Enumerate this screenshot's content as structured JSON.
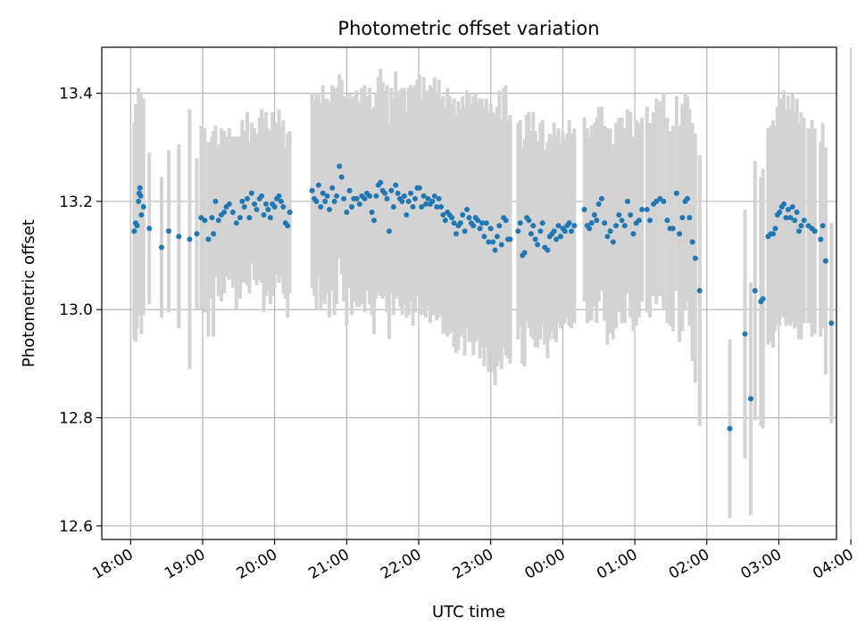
{
  "chart_data": {
    "type": "scatter",
    "title": "Photometric offset variation",
    "xlabel": "UTC time",
    "ylabel": "Photometric offset",
    "ylim": [
      12.575,
      13.485
    ],
    "xlim": [
      -0.4,
      9.8
    ],
    "grid": true,
    "x_unit": "hours after 18:00 UTC",
    "x_tick_values": [
      0,
      1,
      2,
      3,
      4,
      5,
      6,
      7,
      8,
      9,
      10
    ],
    "x_tick_labels": [
      "18:00",
      "19:00",
      "20:00",
      "21:00",
      "22:00",
      "23:00",
      "00:00",
      "01:00",
      "02:00",
      "03:00",
      "04:00"
    ],
    "y_tick_values": [
      12.6,
      12.8,
      13.0,
      13.2,
      13.4
    ],
    "y_tick_labels": [
      "12.6",
      "12.8",
      "13.0",
      "13.2",
      "13.4"
    ],
    "colors": {
      "point": "#1f77b4",
      "errorbar": "#d3d3d3",
      "grid": "#b0b0b0"
    },
    "series": [
      {
        "points": [
          [
            0.05,
            13.145,
            0.2
          ],
          [
            0.07,
            13.16,
            0.22
          ],
          [
            0.09,
            13.155,
            0.19
          ],
          [
            0.11,
            13.2,
            0.21
          ],
          [
            0.12,
            13.215,
            0.18
          ],
          [
            0.13,
            13.225,
            0.17
          ],
          [
            0.14,
            13.21,
            0.19
          ],
          [
            0.15,
            13.175,
            0.22
          ],
          [
            0.18,
            13.19,
            0.2
          ],
          [
            0.26,
            13.15,
            0.14
          ],
          [
            0.43,
            13.115,
            0.13
          ],
          [
            0.53,
            13.145,
            0.15
          ],
          [
            0.67,
            13.135,
            0.17
          ],
          [
            0.82,
            13.13,
            0.24
          ],
          [
            0.92,
            13.14,
            0.14
          ],
          [
            0.98,
            13.17,
            0.17
          ],
          [
            1.03,
            13.165,
            0.17
          ],
          [
            1.08,
            13.13,
            0.18
          ],
          [
            1.13,
            13.17,
            0.15
          ],
          [
            1.15,
            13.14,
            0.19
          ],
          [
            1.18,
            13.2,
            0.14
          ],
          [
            1.22,
            13.165,
            0.14
          ],
          [
            1.26,
            13.175,
            0.16
          ],
          [
            1.3,
            13.18,
            0.15
          ],
          [
            1.33,
            13.19,
            0.13
          ],
          [
            1.37,
            13.195,
            0.14
          ],
          [
            1.42,
            13.18,
            0.14
          ],
          [
            1.47,
            13.16,
            0.16
          ],
          [
            1.52,
            13.17,
            0.15
          ],
          [
            1.55,
            13.2,
            0.15
          ],
          [
            1.58,
            13.19,
            0.14
          ],
          [
            1.62,
            13.205,
            0.16
          ],
          [
            1.65,
            13.17,
            0.14
          ],
          [
            1.68,
            13.215,
            0.13
          ],
          [
            1.72,
            13.195,
            0.14
          ],
          [
            1.75,
            13.185,
            0.14
          ],
          [
            1.79,
            13.205,
            0.15
          ],
          [
            1.82,
            13.21,
            0.16
          ],
          [
            1.85,
            13.175,
            0.18
          ],
          [
            1.88,
            13.195,
            0.17
          ],
          [
            1.91,
            13.185,
            0.15
          ],
          [
            1.94,
            13.17,
            0.16
          ],
          [
            1.97,
            13.195,
            0.17
          ],
          [
            2.0,
            13.19,
            0.15
          ],
          [
            2.03,
            13.205,
            0.14
          ],
          [
            2.06,
            13.21,
            0.16
          ],
          [
            2.09,
            13.2,
            0.14
          ],
          [
            2.12,
            13.19,
            0.16
          ],
          [
            2.15,
            13.16,
            0.14
          ],
          [
            2.18,
            13.155,
            0.17
          ],
          [
            2.21,
            13.18,
            0.15
          ],
          [
            2.52,
            13.22,
            0.18
          ],
          [
            2.55,
            13.205,
            0.18
          ],
          [
            2.58,
            13.2,
            0.2
          ],
          [
            2.61,
            13.23,
            0.17
          ],
          [
            2.64,
            13.19,
            0.19
          ],
          [
            2.67,
            13.215,
            0.2
          ],
          [
            2.7,
            13.2,
            0.19
          ],
          [
            2.73,
            13.21,
            0.18
          ],
          [
            2.76,
            13.185,
            0.2
          ],
          [
            2.8,
            13.225,
            0.19
          ],
          [
            2.83,
            13.2,
            0.21
          ],
          [
            2.86,
            13.21,
            0.2
          ],
          [
            2.9,
            13.265,
            0.17
          ],
          [
            2.93,
            13.245,
            0.18
          ],
          [
            2.96,
            13.205,
            0.19
          ],
          [
            3.0,
            13.18,
            0.21
          ],
          [
            3.04,
            13.22,
            0.18
          ],
          [
            3.07,
            13.19,
            0.2
          ],
          [
            3.1,
            13.205,
            0.19
          ],
          [
            3.14,
            13.205,
            0.2
          ],
          [
            3.18,
            13.195,
            0.19
          ],
          [
            3.21,
            13.21,
            0.2
          ],
          [
            3.25,
            13.205,
            0.21
          ],
          [
            3.28,
            13.215,
            0.18
          ],
          [
            3.32,
            13.21,
            0.2
          ],
          [
            3.35,
            13.18,
            0.19
          ],
          [
            3.38,
            13.165,
            0.21
          ],
          [
            3.41,
            13.21,
            0.19
          ],
          [
            3.44,
            13.23,
            0.2
          ],
          [
            3.47,
            13.235,
            0.21
          ],
          [
            3.5,
            13.22,
            0.2
          ],
          [
            3.53,
            13.215,
            0.19
          ],
          [
            3.56,
            13.205,
            0.21
          ],
          [
            3.59,
            13.145,
            0.2
          ],
          [
            3.62,
            13.22,
            0.19
          ],
          [
            3.65,
            13.19,
            0.2
          ],
          [
            3.68,
            13.23,
            0.21
          ],
          [
            3.71,
            13.215,
            0.19
          ],
          [
            3.74,
            13.205,
            0.2
          ],
          [
            3.77,
            13.2,
            0.21
          ],
          [
            3.8,
            13.21,
            0.2
          ],
          [
            3.83,
            13.175,
            0.19
          ],
          [
            3.86,
            13.2,
            0.21
          ],
          [
            3.89,
            13.215,
            0.2
          ],
          [
            3.92,
            13.19,
            0.22
          ],
          [
            3.95,
            13.205,
            0.21
          ],
          [
            3.98,
            13.225,
            0.2
          ],
          [
            4.01,
            13.225,
            0.21
          ],
          [
            4.04,
            13.19,
            0.2
          ],
          [
            4.07,
            13.21,
            0.22
          ],
          [
            4.1,
            13.195,
            0.21
          ],
          [
            4.13,
            13.205,
            0.2
          ],
          [
            4.16,
            13.195,
            0.22
          ],
          [
            4.19,
            13.2,
            0.21
          ],
          [
            4.22,
            13.21,
            0.22
          ],
          [
            4.25,
            13.19,
            0.21
          ],
          [
            4.28,
            13.205,
            0.22
          ],
          [
            4.31,
            13.19,
            0.2
          ],
          [
            4.34,
            13.175,
            0.22
          ],
          [
            4.37,
            13.165,
            0.21
          ],
          [
            4.4,
            13.18,
            0.23
          ],
          [
            4.43,
            13.175,
            0.22
          ],
          [
            4.46,
            13.17,
            0.21
          ],
          [
            4.49,
            13.16,
            0.23
          ],
          [
            4.52,
            13.14,
            0.22
          ],
          [
            4.55,
            13.155,
            0.23
          ],
          [
            4.58,
            13.16,
            0.21
          ],
          [
            4.61,
            13.175,
            0.22
          ],
          [
            4.64,
            13.145,
            0.23
          ],
          [
            4.67,
            13.185,
            0.22
          ],
          [
            4.7,
            13.17,
            0.23
          ],
          [
            4.73,
            13.16,
            0.22
          ],
          [
            4.76,
            13.155,
            0.24
          ],
          [
            4.79,
            13.17,
            0.23
          ],
          [
            4.82,
            13.165,
            0.22
          ],
          [
            4.85,
            13.15,
            0.24
          ],
          [
            4.88,
            13.16,
            0.23
          ],
          [
            4.91,
            13.135,
            0.24
          ],
          [
            4.94,
            13.16,
            0.23
          ],
          [
            4.97,
            13.125,
            0.24
          ],
          [
            5.0,
            13.15,
            0.23
          ],
          [
            5.03,
            13.125,
            0.24
          ],
          [
            5.06,
            13.11,
            0.25
          ],
          [
            5.09,
            13.135,
            0.24
          ],
          [
            5.12,
            13.155,
            0.25
          ],
          [
            5.15,
            13.12,
            0.23
          ],
          [
            5.18,
            13.17,
            0.24
          ],
          [
            5.21,
            13.165,
            0.25
          ],
          [
            5.24,
            13.13,
            0.22
          ],
          [
            5.27,
            13.13,
            0.23
          ],
          [
            5.38,
            13.145,
            0.2
          ],
          [
            5.41,
            13.16,
            0.19
          ],
          [
            5.44,
            13.1,
            0.2
          ],
          [
            5.47,
            13.105,
            0.21
          ],
          [
            5.5,
            13.17,
            0.19
          ],
          [
            5.53,
            13.165,
            0.2
          ],
          [
            5.56,
            13.14,
            0.19
          ],
          [
            5.59,
            13.155,
            0.21
          ],
          [
            5.62,
            13.13,
            0.2
          ],
          [
            5.65,
            13.12,
            0.19
          ],
          [
            5.69,
            13.145,
            0.2
          ],
          [
            5.72,
            13.16,
            0.19
          ],
          [
            5.75,
            13.115,
            0.18
          ],
          [
            5.79,
            13.11,
            0.2
          ],
          [
            5.82,
            13.135,
            0.19
          ],
          [
            5.85,
            13.14,
            0.18
          ],
          [
            5.88,
            13.145,
            0.2
          ],
          [
            5.91,
            13.13,
            0.19
          ],
          [
            5.94,
            13.155,
            0.18
          ],
          [
            5.97,
            13.135,
            0.17
          ],
          [
            6.0,
            13.15,
            0.18
          ],
          [
            6.03,
            13.145,
            0.17
          ],
          [
            6.06,
            13.155,
            0.17
          ],
          [
            6.09,
            13.16,
            0.19
          ],
          [
            6.12,
            13.145,
            0.18
          ],
          [
            6.16,
            13.155,
            0.18
          ],
          [
            6.3,
            13.185,
            0.17
          ],
          [
            6.34,
            13.155,
            0.18
          ],
          [
            6.37,
            13.15,
            0.17
          ],
          [
            6.4,
            13.16,
            0.18
          ],
          [
            6.44,
            13.175,
            0.17
          ],
          [
            6.47,
            13.165,
            0.19
          ],
          [
            6.5,
            13.195,
            0.18
          ],
          [
            6.54,
            13.205,
            0.17
          ],
          [
            6.58,
            13.16,
            0.18
          ],
          [
            6.62,
            13.135,
            0.2
          ],
          [
            6.66,
            13.145,
            0.19
          ],
          [
            6.7,
            13.125,
            0.18
          ],
          [
            6.74,
            13.155,
            0.19
          ],
          [
            6.78,
            13.175,
            0.18
          ],
          [
            6.82,
            13.165,
            0.19
          ],
          [
            6.86,
            13.155,
            0.18
          ],
          [
            6.9,
            13.2,
            0.17
          ],
          [
            6.94,
            13.175,
            0.19
          ],
          [
            6.98,
            13.14,
            0.18
          ],
          [
            7.02,
            13.16,
            0.19
          ],
          [
            7.06,
            13.165,
            0.18
          ],
          [
            7.1,
            13.185,
            0.17
          ],
          [
            7.17,
            13.185,
            0.19
          ],
          [
            7.21,
            13.165,
            0.18
          ],
          [
            7.26,
            13.195,
            0.17
          ],
          [
            7.3,
            13.2,
            0.19
          ],
          [
            7.35,
            13.205,
            0.18
          ],
          [
            7.4,
            13.2,
            0.2
          ],
          [
            7.45,
            13.165,
            0.19
          ],
          [
            7.49,
            13.15,
            0.18
          ],
          [
            7.53,
            13.15,
            0.19
          ],
          [
            7.58,
            13.215,
            0.18
          ],
          [
            7.62,
            13.14,
            0.2
          ],
          [
            7.66,
            13.17,
            0.21
          ],
          [
            7.7,
            13.2,
            0.2
          ],
          [
            7.73,
            13.205,
            0.19
          ],
          [
            7.76,
            13.17,
            0.2
          ],
          [
            7.8,
            13.125,
            0.22
          ],
          [
            7.84,
            13.095,
            0.23
          ],
          [
            7.9,
            13.035,
            0.25
          ],
          [
            8.32,
            12.78,
            0.165
          ],
          [
            8.53,
            12.955,
            0.23
          ],
          [
            8.61,
            12.835,
            0.215
          ],
          [
            8.67,
            13.035,
            0.24
          ],
          [
            8.75,
            13.015,
            0.23
          ],
          [
            8.78,
            13.02,
            0.24
          ],
          [
            8.85,
            13.135,
            0.2
          ],
          [
            8.89,
            13.14,
            0.2
          ],
          [
            8.92,
            13.14,
            0.21
          ],
          [
            8.95,
            13.15,
            0.19
          ],
          [
            8.98,
            13.175,
            0.2
          ],
          [
            9.01,
            13.18,
            0.21
          ],
          [
            9.04,
            13.19,
            0.2
          ],
          [
            9.07,
            13.195,
            0.21
          ],
          [
            9.1,
            13.17,
            0.2
          ],
          [
            9.13,
            13.185,
            0.21
          ],
          [
            9.16,
            13.17,
            0.2
          ],
          [
            9.19,
            13.19,
            0.21
          ],
          [
            9.22,
            13.165,
            0.2
          ],
          [
            9.25,
            13.18,
            0.21
          ],
          [
            9.28,
            13.145,
            0.2
          ],
          [
            9.31,
            13.155,
            0.21
          ],
          [
            9.35,
            13.165,
            0.19
          ],
          [
            9.41,
            13.155,
            0.18
          ],
          [
            9.46,
            13.15,
            0.2
          ],
          [
            9.5,
            13.145,
            0.19
          ],
          [
            9.58,
            13.13,
            0.18
          ],
          [
            9.61,
            13.155,
            0.19
          ],
          [
            9.65,
            13.09,
            0.21
          ],
          [
            9.73,
            12.975,
            0.185
          ]
        ]
      }
    ]
  }
}
